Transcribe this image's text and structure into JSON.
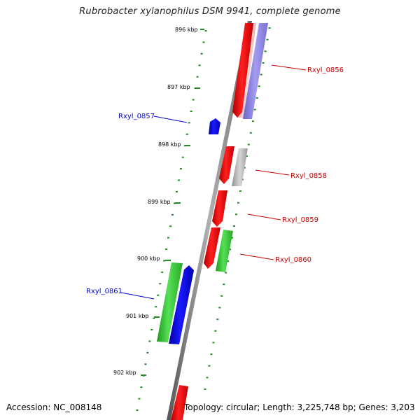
{
  "title": "Rubrobacter xylanophilus DSM 9941, complete genome",
  "footer": {
    "accession": "Accession: NC_008148",
    "topology": "Topology: circular;",
    "length": "Length: 3,225,748 bp;",
    "genes": "Genes: 3,203"
  },
  "ruler": [
    {
      "label": "896 kbp"
    },
    {
      "label": "897 kbp"
    },
    {
      "label": "898 kbp"
    },
    {
      "label": "899 kbp"
    },
    {
      "label": "900 kbp"
    },
    {
      "label": "901 kbp"
    },
    {
      "label": "902 kbp"
    }
  ],
  "genes": [
    {
      "name": "Rxyl_0856",
      "color": "#cc0000"
    },
    {
      "name": "Rxyl_0857",
      "color": "#0000cc"
    },
    {
      "name": "Rxyl_0858",
      "color": "#cc0000"
    },
    {
      "name": "Rxyl_0859",
      "color": "#cc0000"
    },
    {
      "name": "Rxyl_0860",
      "color": "#cc0000"
    },
    {
      "name": "Rxyl_0861",
      "color": "#0000cc"
    }
  ],
  "colors": {
    "backbone": "#777777",
    "tick": "#228b22",
    "forward_gene": "#ff0000",
    "reverse_gene": "#0000ff",
    "rna_like": "#2fbf2f",
    "pale_red": "#f4c4c4",
    "pale_blue": "#8a7fd8",
    "gray_feature": "#a8a8a8"
  }
}
